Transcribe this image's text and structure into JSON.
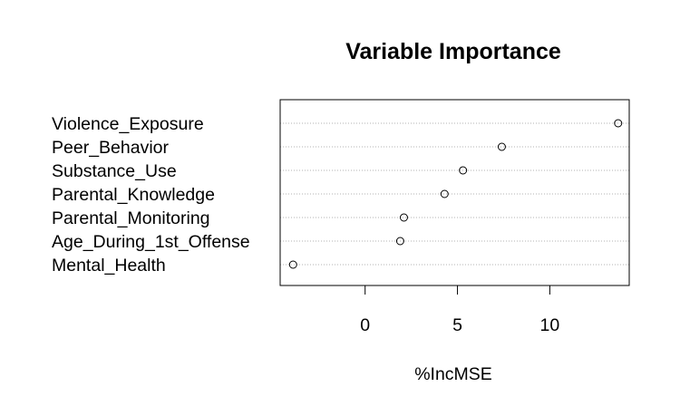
{
  "chart_data": {
    "type": "scatter",
    "title": "Variable Importance",
    "xlabel": "%IncMSE",
    "ylabel": "",
    "categories": [
      "Violence_Exposure",
      "Peer_Behavior",
      "Substance_Use",
      "Parental_Knowledge",
      "Parental_Monitoring",
      "Age_During_1st_Offense",
      "Mental_Health"
    ],
    "values": [
      13.7,
      7.4,
      5.3,
      4.3,
      2.1,
      1.9,
      -3.9
    ],
    "xlim": [
      -4.6,
      14.3
    ],
    "xticks": [
      0,
      5,
      10
    ],
    "grid": "horizontal dotted",
    "legend": "none",
    "point_marker": "open circle"
  }
}
